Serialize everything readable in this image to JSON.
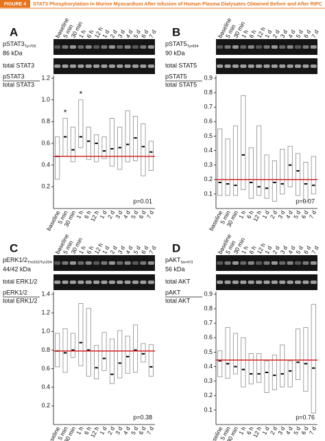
{
  "figure": {
    "label": "FIGURE 4",
    "title": "STAT3 Phosphorylation in Murine Myocardium After Infusion of Human Plasma Dialysates Obtained Before and After RIPC"
  },
  "chart_data": [
    {
      "type": "range-bar",
      "panel": "A",
      "blot": {
        "phospho": "pSTAT3",
        "site": "Tyr705",
        "weight": "86 kDa",
        "total": "total STAT3"
      },
      "ylabel": {
        "numerator": "pSTAT3",
        "denominator": "total STAT3"
      },
      "p_value": "p=0.01",
      "categories": [
        "baseline",
        "5 min",
        "30 min",
        "1 h",
        "6 h",
        "12 h",
        "1 d",
        "2 d",
        "3 d",
        "4 d",
        "5 d",
        "6 d",
        "7 d"
      ],
      "low": [
        0.27,
        0.48,
        0.43,
        0.56,
        0.45,
        0.43,
        0.46,
        0.39,
        0.36,
        0.43,
        0.44,
        0.3,
        0.35
      ],
      "high": [
        0.66,
        0.83,
        0.75,
        1.0,
        0.75,
        0.68,
        0.66,
        0.83,
        0.75,
        0.9,
        0.85,
        0.78,
        0.62
      ],
      "median": [
        0.48,
        0.66,
        0.54,
        0.66,
        0.62,
        0.6,
        0.53,
        0.55,
        0.56,
        0.59,
        0.65,
        0.57,
        0.52
      ],
      "markers": [
        null,
        "*",
        null,
        "*",
        null,
        null,
        null,
        null,
        null,
        null,
        null,
        null,
        null
      ],
      "reference": 0.48,
      "reference_color": "#d42020",
      "box_color": "#8a8a8a",
      "ylim": [
        0,
        1.2
      ],
      "yticks": [
        0.2,
        0.4,
        0.6,
        0.8,
        {
          "value": 1,
          "label": "1.0"
        },
        1.2
      ]
    },
    {
      "type": "range-bar",
      "panel": "B",
      "blot": {
        "phospho": "pSTAT5",
        "site": "Tyr694",
        "weight": "90 kDa",
        "total": "total STAT5"
      },
      "ylabel": {
        "numerator": "pSTAT5",
        "denominator": "total STAT5"
      },
      "p_value": "p=0.07",
      "categories": [
        "baseline",
        "5 min",
        "30 min",
        "1 h",
        "6 h",
        "12 h",
        "1 d",
        "2 d",
        "3 d",
        "4 d",
        "5 d",
        "6 d",
        "7 d"
      ],
      "low": [
        0.09,
        0.09,
        0.09,
        0.13,
        0.07,
        0.09,
        0.07,
        0.05,
        0.1,
        0.15,
        0.09,
        0.05,
        0.1
      ],
      "high": [
        0.55,
        0.48,
        0.57,
        0.78,
        0.42,
        0.57,
        0.37,
        0.33,
        0.41,
        0.43,
        0.38,
        0.32,
        0.36
      ],
      "median": [
        0.18,
        0.17,
        0.16,
        0.37,
        0.18,
        0.15,
        0.14,
        0.18,
        0.17,
        0.3,
        0.26,
        0.17,
        0.16
      ],
      "reference": 0.2,
      "reference_color": "#d42020",
      "box_color": "#8a8a8a",
      "ylim": [
        0,
        0.9
      ],
      "yticks": [
        0.1,
        0.2,
        0.3,
        0.4,
        0.5,
        0.6,
        0.7,
        0.8,
        0.9
      ]
    },
    {
      "type": "range-bar",
      "panel": "C",
      "blot": {
        "phospho": "pERK1/2",
        "site": "Thr202/Tyr204",
        "weight": "44/42 kDa",
        "total": "total ERK1/2"
      },
      "ylabel": {
        "numerator": "pERK1/2",
        "denominator": "total ERK1/2"
      },
      "p_value": "p=0.38",
      "categories": [
        "baseline",
        "5 min",
        "30 min",
        "1 h",
        "6 h",
        "12 h",
        "1 d",
        "2 d",
        "3 d",
        "4 d",
        "5 d",
        "6 d",
        "7 d"
      ],
      "low": [
        0.62,
        0.56,
        0.72,
        0.63,
        0.52,
        0.49,
        0.58,
        0.44,
        0.5,
        0.55,
        0.56,
        0.67,
        0.52
      ],
      "high": [
        0.98,
        1.03,
        0.98,
        1.3,
        1.25,
        0.85,
        0.99,
        0.92,
        1.01,
        0.95,
        1.07,
        0.87,
        0.86
      ],
      "median": [
        0.79,
        0.77,
        0.8,
        0.88,
        0.8,
        0.61,
        0.71,
        0.54,
        0.66,
        0.73,
        0.8,
        0.76,
        0.62
      ],
      "reference": 0.79,
      "reference_color": "#d42020",
      "box_color": "#8a8a8a",
      "ylim": [
        0,
        1.4
      ],
      "yticks": [
        0.2,
        0.4,
        0.6,
        0.8,
        {
          "value": 1,
          "label": "1.0"
        },
        1.2,
        1.4
      ]
    },
    {
      "type": "range-bar",
      "panel": "D",
      "blot": {
        "phospho": "pAKT",
        "site": "Ser473",
        "weight": "56 kDa",
        "total": "total AKT"
      },
      "ylabel": {
        "numerator": "pAKT",
        "denominator": "total AKT"
      },
      "p_value": "p=0.76",
      "categories": [
        "baseline",
        "5 min",
        "30 min",
        "1 h",
        "6 h",
        "12 h",
        "1 d",
        "2 d",
        "3 d",
        "4 d",
        "5 d",
        "6 d",
        "7 d"
      ],
      "low": [
        0.33,
        0.32,
        0.35,
        0.26,
        0.28,
        0.29,
        0.22,
        0.24,
        0.26,
        0.26,
        0.31,
        0.23,
        0.08
      ],
      "high": [
        0.51,
        0.67,
        0.63,
        0.6,
        0.49,
        0.49,
        0.44,
        0.48,
        0.55,
        0.44,
        0.66,
        0.67,
        0.83
      ],
      "median": [
        0.44,
        0.42,
        0.4,
        0.38,
        0.35,
        0.35,
        0.36,
        0.34,
        0.35,
        0.37,
        0.43,
        0.42,
        0.39
      ],
      "reference": 0.445,
      "reference_color": "#d42020",
      "box_color": "#8a8a8a",
      "ylim": [
        0,
        0.9
      ],
      "yticks": [
        0.1,
        0.2,
        0.3,
        0.4,
        0.5,
        0.6,
        0.7,
        0.8,
        0.9
      ]
    }
  ]
}
